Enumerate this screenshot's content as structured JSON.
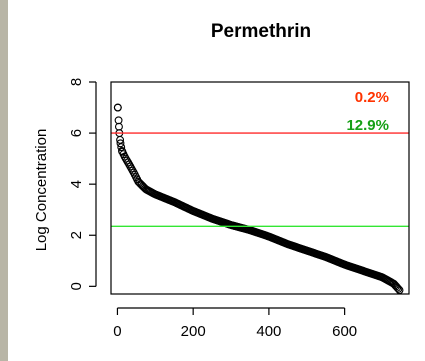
{
  "chart_data": {
    "type": "scatter",
    "title": "Permethrin",
    "xlabel": "",
    "ylabel": "Log Concentration",
    "xlim": [
      -17,
      770
    ],
    "ylim": [
      -0.3,
      8.0
    ],
    "x_ticks": [
      0,
      200,
      400,
      600
    ],
    "y_ticks": [
      0,
      2,
      4,
      6,
      8
    ],
    "grid": false,
    "marker": "open-circle",
    "n_points": 745,
    "sorted_curve": [
      [
        1,
        7.0
      ],
      [
        3,
        6.5
      ],
      [
        5,
        6.0
      ],
      [
        8,
        5.6
      ],
      [
        12,
        5.3
      ],
      [
        20,
        5.05
      ],
      [
        30,
        4.8
      ],
      [
        45,
        4.4
      ],
      [
        55,
        4.1
      ],
      [
        75,
        3.8
      ],
      [
        100,
        3.6
      ],
      [
        150,
        3.3
      ],
      [
        200,
        2.95
      ],
      [
        250,
        2.65
      ],
      [
        300,
        2.4
      ],
      [
        350,
        2.2
      ],
      [
        400,
        1.95
      ],
      [
        450,
        1.65
      ],
      [
        500,
        1.4
      ],
      [
        550,
        1.15
      ],
      [
        600,
        0.85
      ],
      [
        650,
        0.6
      ],
      [
        700,
        0.35
      ],
      [
        730,
        0.1
      ],
      [
        745,
        -0.15
      ]
    ],
    "reference_lines": [
      {
        "value": 6.0,
        "color": "#ff2a2a",
        "percent_label": "0.2%",
        "label_color": "#ff3300"
      },
      {
        "value": 2.35,
        "color": "#33e633",
        "percent_label": "12.9%",
        "label_color": "#16a016"
      }
    ]
  }
}
